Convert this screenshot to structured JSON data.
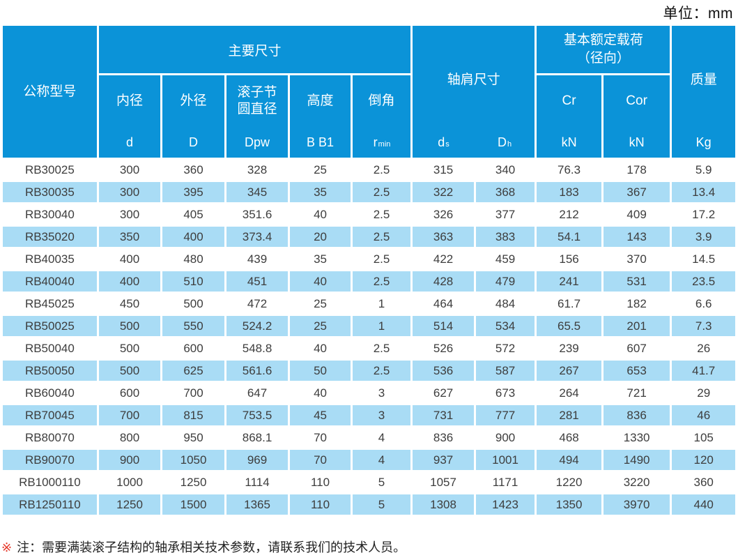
{
  "unit_label": "单位：mm",
  "colors": {
    "header_blue": "#0b93d8",
    "row_alt_blue": "#a9dcf5",
    "data_text": "#3d3d3d",
    "note_marker_red": "#e5382a",
    "gap_white": "#ffffff"
  },
  "table": {
    "header": {
      "model": "公称型号",
      "main_dims": "主要尺寸",
      "shoulder_dims": "轴肩尺寸",
      "load_line1": "基本额定载荷",
      "load_line2": "（径向）",
      "mass": "质量",
      "mass_symbol": "Kg",
      "sub_cols": [
        {
          "line1": "内径",
          "symbol": "d"
        },
        {
          "line1": "外径",
          "symbol": "D"
        },
        {
          "line1": "滚子节",
          "line2": "圆直径",
          "symbol": "Dpw"
        },
        {
          "line1": "高度",
          "symbol": "B B1"
        },
        {
          "line1": "倒角",
          "symbol": "r",
          "symbol_sub": "min"
        },
        {
          "line1": "Cr",
          "symbol": "kN"
        },
        {
          "line1": "Cor",
          "symbol": "kN"
        }
      ],
      "shoulder_cols": [
        {
          "base": "d",
          "sub": "s"
        },
        {
          "base": "D",
          "sub": "h"
        }
      ]
    },
    "rows": [
      [
        "RB30025",
        "300",
        "360",
        "328",
        "25",
        "2.5",
        "315",
        "340",
        "76.3",
        "178",
        "5.9"
      ],
      [
        "RB30035",
        "300",
        "395",
        "345",
        "35",
        "2.5",
        "322",
        "368",
        "183",
        "367",
        "13.4"
      ],
      [
        "RB30040",
        "300",
        "405",
        "351.6",
        "40",
        "2.5",
        "326",
        "377",
        "212",
        "409",
        "17.2"
      ],
      [
        "RB35020",
        "350",
        "400",
        "373.4",
        "20",
        "2.5",
        "363",
        "383",
        "54.1",
        "143",
        "3.9"
      ],
      [
        "RB40035",
        "400",
        "480",
        "439",
        "35",
        "2.5",
        "422",
        "459",
        "156",
        "370",
        "14.5"
      ],
      [
        "RB40040",
        "400",
        "510",
        "451",
        "40",
        "2.5",
        "428",
        "479",
        "241",
        "531",
        "23.5"
      ],
      [
        "RB45025",
        "450",
        "500",
        "472",
        "25",
        "1",
        "464",
        "484",
        "61.7",
        "182",
        "6.6"
      ],
      [
        "RB50025",
        "500",
        "550",
        "524.2",
        "25",
        "1",
        "514",
        "534",
        "65.5",
        "201",
        "7.3"
      ],
      [
        "RB50040",
        "500",
        "600",
        "548.8",
        "40",
        "2.5",
        "526",
        "572",
        "239",
        "607",
        "26"
      ],
      [
        "RB50050",
        "500",
        "625",
        "561.6",
        "50",
        "2.5",
        "536",
        "587",
        "267",
        "653",
        "41.7"
      ],
      [
        "RB60040",
        "600",
        "700",
        "647",
        "40",
        "3",
        "627",
        "673",
        "264",
        "721",
        "29"
      ],
      [
        "RB70045",
        "700",
        "815",
        "753.5",
        "45",
        "3",
        "731",
        "777",
        "281",
        "836",
        "46"
      ],
      [
        "RB80070",
        "800",
        "950",
        "868.1",
        "70",
        "4",
        "836",
        "900",
        "468",
        "1330",
        "105"
      ],
      [
        "RB90070",
        "900",
        "1050",
        "969",
        "70",
        "4",
        "937",
        "1001",
        "494",
        "1490",
        "120"
      ],
      [
        "RB1000110",
        "1000",
        "1250",
        "1114",
        "110",
        "5",
        "1057",
        "1171",
        "1220",
        "3220",
        "360"
      ],
      [
        "RB1250110",
        "1250",
        "1500",
        "1365",
        "110",
        "5",
        "1308",
        "1423",
        "1350",
        "3970",
        "440"
      ]
    ]
  },
  "note": {
    "marker": "※",
    "text": "注：需要满装滚子结构的轴承相关技术参数，请联系我们的技术人员。"
  }
}
